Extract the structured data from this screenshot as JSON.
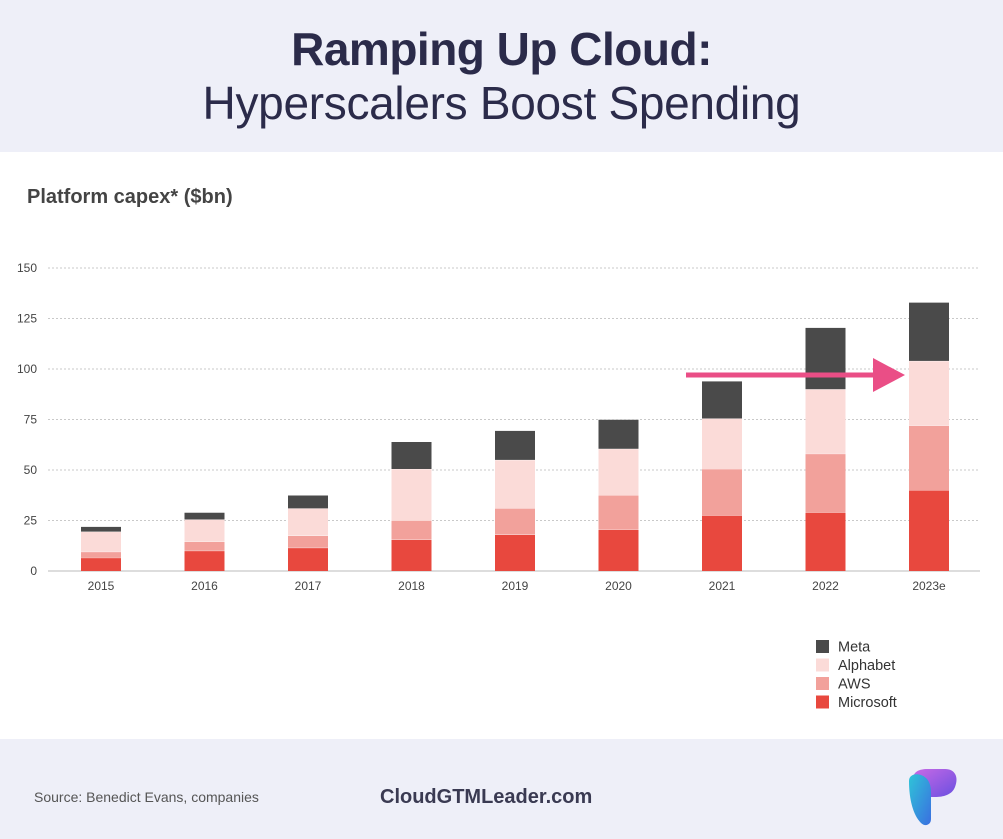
{
  "header": {
    "title_line1": "Ramping Up Cloud:",
    "title_line2": "Hyperscalers Boost Spending"
  },
  "chart_heading": "Platform capex* ($bn)",
  "footer": {
    "source": "Source: Benedict Evans, companies",
    "brand": "CloudGTMLeader.com"
  },
  "colors": {
    "Microsoft": "#e8483e",
    "AWS": "#f2a19b",
    "Alphabet": "#fbdbd8",
    "Meta": "#4a4a4a",
    "arrow": "#ea4e86",
    "header_bg": "#eeeff8"
  },
  "chart_data": {
    "type": "bar",
    "stacked": true,
    "title": "Platform capex* ($bn)",
    "xlabel": "",
    "ylabel": "",
    "ylim": [
      0,
      150
    ],
    "yticks": [
      0,
      25,
      50,
      75,
      100,
      125,
      150
    ],
    "grid": true,
    "legend_position": "bottom-right",
    "categories": [
      "2015",
      "2016",
      "2017",
      "2018",
      "2019",
      "2020",
      "2021",
      "2022",
      "2023e"
    ],
    "series": [
      {
        "name": "Microsoft",
        "values": [
          6.5,
          10,
          11.5,
          15.5,
          18,
          20.5,
          27.5,
          29,
          40
        ]
      },
      {
        "name": "AWS",
        "values": [
          3,
          4.5,
          6,
          9.5,
          13,
          17,
          23,
          29,
          32
        ]
      },
      {
        "name": "Alphabet",
        "values": [
          10,
          11,
          13.5,
          25.5,
          24,
          23,
          25,
          32,
          32
        ]
      },
      {
        "name": "Meta",
        "values": [
          2.5,
          3.5,
          6.5,
          13.5,
          14.5,
          14.5,
          18.5,
          30.5,
          29
        ]
      }
    ],
    "legend_order": [
      "Meta",
      "Alphabet",
      "AWS",
      "Microsoft"
    ],
    "annotations": [
      {
        "type": "arrow",
        "from_category": "2021",
        "to_category": "2023e",
        "y_value": 97,
        "direction": "right"
      }
    ]
  }
}
